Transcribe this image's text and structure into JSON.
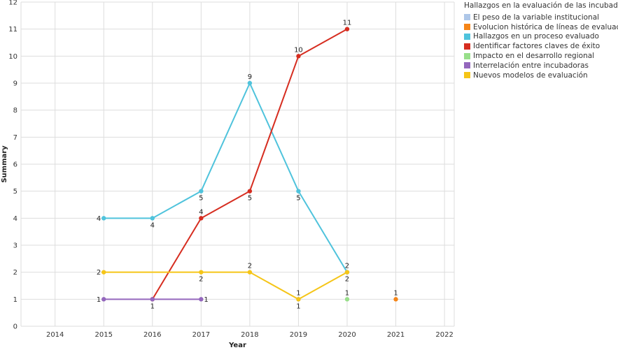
{
  "chart_data": {
    "type": "line",
    "xlabel": "Year",
    "ylabel": "Summary",
    "x_ticks": [
      2014,
      2015,
      2016,
      2017,
      2018,
      2019,
      2020,
      2021,
      2022
    ],
    "xlim": [
      2013.3,
      2022.2
    ],
    "ylim": [
      0,
      12
    ],
    "y_ticks": [
      0,
      1,
      2,
      3,
      4,
      5,
      6,
      7,
      8,
      9,
      10,
      11,
      12
    ],
    "grid": true,
    "legend_position": "right",
    "legend_title": "Hallazgos en la evaluación de las incubadoras",
    "series": [
      {
        "name": "El peso de la variable institucional",
        "color": "#aec7e8",
        "points": [
          [
            2019,
            1
          ]
        ],
        "label_pos": [
          "below"
        ]
      },
      {
        "name": "Evolucion histórica de líneas de evaluación",
        "color": "#f58518",
        "points": [
          [
            2021,
            1
          ]
        ],
        "label_pos": [
          "above"
        ]
      },
      {
        "name": "Hallazgos en un proceso evaluado",
        "color": "#4fc3dc",
        "points": [
          [
            2015,
            4
          ],
          [
            2016,
            4
          ],
          [
            2017,
            5
          ],
          [
            2018,
            9
          ],
          [
            2019,
            5
          ],
          [
            2020,
            2
          ]
        ],
        "label_pos": [
          "left",
          "below",
          "below",
          "above",
          "below",
          "below"
        ]
      },
      {
        "name": "Identificar factores claves de éxito",
        "color": "#d62d20",
        "points": [
          [
            2016,
            1
          ],
          [
            2017,
            4
          ],
          [
            2018,
            5
          ],
          [
            2019,
            10
          ],
          [
            2020,
            11
          ]
        ],
        "label_pos": [
          "below",
          "above",
          "below",
          "above",
          "above"
        ]
      },
      {
        "name": "Impacto en el desarrollo regional",
        "color": "#98df8a",
        "points": [
          [
            2020,
            1
          ]
        ],
        "label_pos": [
          "above"
        ]
      },
      {
        "name": "Interrelación entre incubadoras",
        "color": "#9467bd",
        "points": [
          [
            2015,
            1
          ],
          [
            2016,
            1
          ],
          [
            2017,
            1
          ]
        ],
        "label_pos": [
          "left",
          "none",
          "right"
        ]
      },
      {
        "name": "Nuevos modelos de evaluación",
        "color": "#f5c518",
        "points": [
          [
            2015,
            2
          ],
          [
            2017,
            2
          ],
          [
            2018,
            2
          ],
          [
            2019,
            1
          ],
          [
            2020,
            2
          ]
        ],
        "label_pos": [
          "left",
          "below",
          "above",
          "above",
          "above"
        ]
      }
    ]
  }
}
